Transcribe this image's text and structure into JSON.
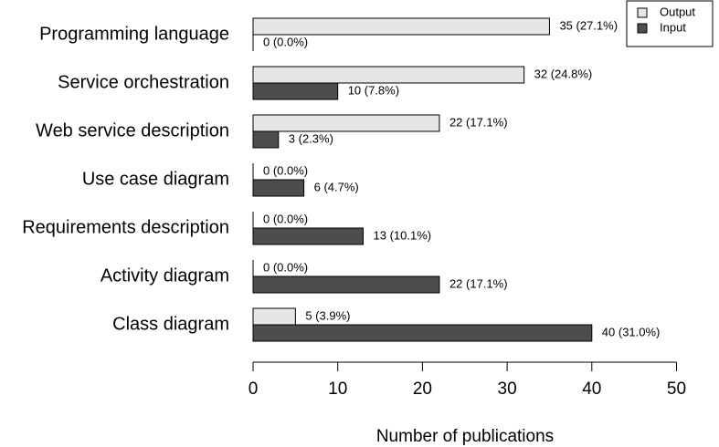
{
  "chart_data": {
    "type": "bar",
    "orientation": "horizontal",
    "categories": [
      "Programming language",
      "Service orchestration",
      "Web service description",
      "Use case diagram",
      "Requirements description",
      "Activity diagram",
      "Class diagram"
    ],
    "series": [
      {
        "name": "Output",
        "color": "#e6e6e6",
        "values": [
          35,
          32,
          22,
          0,
          0,
          0,
          5
        ],
        "labels": [
          "35 (27.1%)",
          "32 (24.8%)",
          "22 (17.1%)",
          "0 (0.0%)",
          "0 (0.0%)",
          "0 (0.0%)",
          "5 (3.9%)"
        ]
      },
      {
        "name": "Input",
        "color": "#4d4d4d",
        "values": [
          0,
          10,
          3,
          6,
          13,
          22,
          40
        ],
        "labels": [
          "0 (0.0%)",
          "10 (7.8%)",
          "3 (2.3%)",
          "6 (4.7%)",
          "13 (10.1%)",
          "22 (17.1%)",
          "40 (31.0%)"
        ]
      }
    ],
    "xlabel": "Number of publications",
    "ylabel": "",
    "xlim": [
      0,
      50
    ],
    "xticks": [
      0,
      10,
      20,
      30,
      40,
      50
    ],
    "legend_position": "top-right",
    "grid": false
  }
}
